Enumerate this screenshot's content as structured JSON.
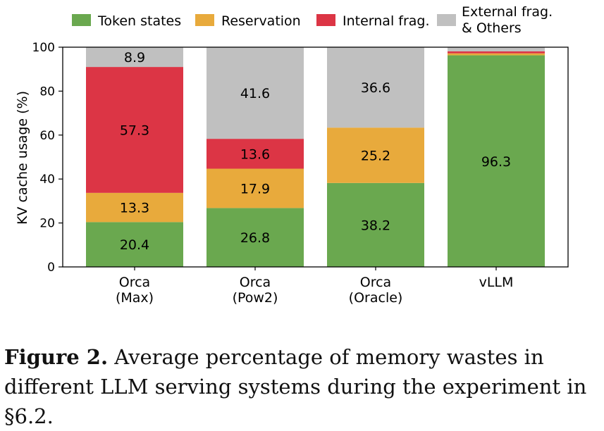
{
  "chart_data": {
    "type": "bar",
    "stacked": true,
    "ylabel": "KV cache usage (%)",
    "ylim": [
      0,
      100
    ],
    "yticks": [
      0,
      20,
      40,
      60,
      80,
      100
    ],
    "categories": [
      "Orca\n(Max)",
      "Orca\n(Pow2)",
      "Orca\n(Oracle)",
      "vLLM"
    ],
    "series": [
      {
        "name": "Token states",
        "color": "#6aa84f",
        "values": [
          20.4,
          26.8,
          38.2,
          96.3
        ],
        "labels": [
          "20.4",
          "26.8",
          "38.2",
          "96.3"
        ]
      },
      {
        "name": "Reservation",
        "color": "#e8aa3c",
        "values": [
          13.3,
          17.9,
          25.2,
          0.9
        ],
        "labels": [
          "13.3",
          "17.9",
          "25.2",
          ""
        ]
      },
      {
        "name": "Internal frag.",
        "color": "#dc3545",
        "values": [
          57.3,
          13.6,
          0,
          0.9
        ],
        "labels": [
          "57.3",
          "13.6",
          "",
          ""
        ]
      },
      {
        "name": "External frag.\n& Others",
        "color": "#c0c0c0",
        "values": [
          8.9,
          41.6,
          36.6,
          1.9
        ],
        "labels": [
          "8.9",
          "41.6",
          "36.6",
          ""
        ]
      }
    ]
  },
  "caption": {
    "label": "Figure 2.",
    "text": "Average percentage of memory wastes in different LLM serving systems during the experiment in §6.2."
  }
}
